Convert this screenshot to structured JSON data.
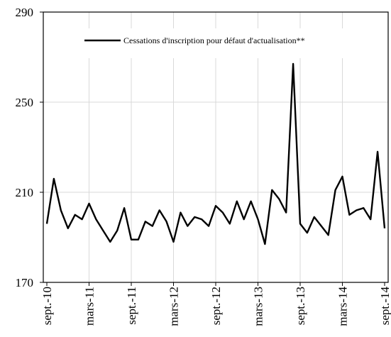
{
  "chart_data": {
    "type": "line",
    "title": "",
    "xlabel": "",
    "ylabel": "",
    "ylim": [
      170,
      290
    ],
    "yticks": [
      170,
      210,
      250,
      290
    ],
    "ytick_labels": [
      "170",
      "210",
      "250",
      "290"
    ],
    "xtick_labels": [
      "sept.-10",
      "mars-11",
      "sept.-11",
      "mars-12",
      "sept.-12",
      "mars-13",
      "sept.-13",
      "mars-14",
      "sept.-14"
    ],
    "grid": true,
    "legend_position": "top",
    "series": [
      {
        "name": "Cessations d'inscription pour défaut d'actualisation**",
        "color": "#000000",
        "values": [
          196,
          216,
          202,
          194,
          200,
          198,
          205,
          198,
          193,
          188,
          193,
          203,
          189,
          189,
          197,
          195,
          202,
          197,
          188,
          201,
          195,
          199,
          198,
          195,
          204,
          201,
          196,
          206,
          198,
          206,
          198,
          187,
          211,
          207,
          201,
          267,
          196,
          192,
          199,
          195,
          191,
          211,
          217,
          200,
          202,
          203,
          198,
          228,
          194
        ]
      }
    ]
  }
}
